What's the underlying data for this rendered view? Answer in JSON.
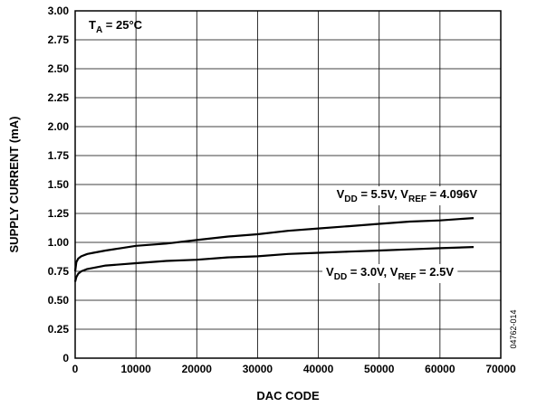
{
  "chart_data": {
    "type": "line",
    "title": "",
    "xlabel": "DAC CODE",
    "ylabel": "SUPPLY CURRENT (mA)",
    "xlim": [
      0,
      70000
    ],
    "ylim": [
      0,
      3.0
    ],
    "grid": true,
    "x_ticks": [
      "0",
      "10000",
      "20000",
      "30000",
      "40000",
      "50000",
      "60000",
      "70000"
    ],
    "y_ticks": [
      "0",
      "0.25",
      "0.50",
      "0.75",
      "1.00",
      "1.25",
      "1.50",
      "1.75",
      "2.00",
      "2.25",
      "2.50",
      "2.75",
      "3.00"
    ],
    "annotations": {
      "temp": {
        "main": "T",
        "sub": "A",
        "rest": " = 25°C"
      },
      "s1": {
        "a": "V",
        "b": "DD",
        "c": " = 5.5V, V",
        "d": "REF",
        "e": " = 4.096V"
      },
      "s2": {
        "a": "V",
        "b": "DD",
        "c": " = 3.0V, V",
        "d": "REF",
        "e": " = 2.5V"
      }
    },
    "figure_id": "04762-014",
    "series": [
      {
        "x": [
          0,
          200,
          500,
          1000,
          2000,
          3000,
          5000,
          7500,
          10000,
          15000,
          20000,
          25000,
          30000,
          35000,
          40000,
          45000,
          50000,
          55000,
          60000,
          65535
        ],
        "y": [
          0.75,
          0.83,
          0.86,
          0.88,
          0.9,
          0.91,
          0.93,
          0.95,
          0.97,
          0.99,
          1.02,
          1.05,
          1.07,
          1.1,
          1.12,
          1.14,
          1.16,
          1.18,
          1.19,
          1.21
        ]
      },
      {
        "x": [
          0,
          200,
          500,
          1000,
          2000,
          3000,
          5000,
          7500,
          10000,
          15000,
          20000,
          25000,
          30000,
          35000,
          40000,
          45000,
          50000,
          55000,
          60000,
          65535
        ],
        "y": [
          0.66,
          0.7,
          0.73,
          0.75,
          0.77,
          0.78,
          0.8,
          0.81,
          0.82,
          0.84,
          0.85,
          0.87,
          0.88,
          0.9,
          0.91,
          0.92,
          0.93,
          0.94,
          0.95,
          0.96
        ]
      }
    ]
  }
}
